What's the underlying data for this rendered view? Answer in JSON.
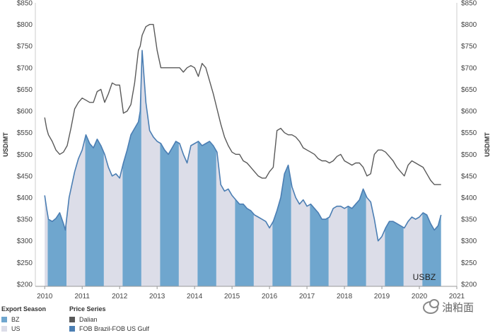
{
  "chart_data": {
    "type": "line",
    "title": "",
    "ylabel_left": "USD/MT",
    "ylabel_right": "USD/MT",
    "ylim": [
      195,
      850
    ],
    "y_ticks": [
      200,
      250,
      300,
      350,
      400,
      450,
      500,
      550,
      600,
      650,
      700,
      750,
      800,
      850
    ],
    "y_tick_labels": [
      "$200",
      "$250",
      "$300",
      "$350",
      "$400",
      "$450",
      "$500",
      "$550",
      "$600",
      "$650",
      "$700",
      "$750",
      "$800",
      "$850"
    ],
    "xlim": [
      2009.75,
      2021.0
    ],
    "x_ticks": [
      2010,
      2011,
      2012,
      2013,
      2014,
      2015,
      2016,
      2017,
      2018,
      2019,
      2020,
      2021
    ],
    "x_tick_labels": [
      "2010",
      "2011",
      "2012",
      "2013",
      "2014",
      "2015",
      "2016",
      "2017",
      "2018",
      "2019",
      "2020",
      "2021"
    ],
    "export_seasons": [
      {
        "season": "US",
        "start": 2010.0,
        "end": 2010.08
      },
      {
        "season": "BZ",
        "start": 2010.08,
        "end": 2010.58
      },
      {
        "season": "US",
        "start": 2010.58,
        "end": 2011.08
      },
      {
        "season": "BZ",
        "start": 2011.08,
        "end": 2011.58
      },
      {
        "season": "US",
        "start": 2011.58,
        "end": 2012.08
      },
      {
        "season": "BZ",
        "start": 2012.08,
        "end": 2012.58
      },
      {
        "season": "US",
        "start": 2012.58,
        "end": 2013.08
      },
      {
        "season": "BZ",
        "start": 2013.08,
        "end": 2013.58
      },
      {
        "season": "US",
        "start": 2013.58,
        "end": 2014.08
      },
      {
        "season": "BZ",
        "start": 2014.08,
        "end": 2014.58
      },
      {
        "season": "US",
        "start": 2014.58,
        "end": 2015.08
      },
      {
        "season": "BZ",
        "start": 2015.08,
        "end": 2015.58
      },
      {
        "season": "US",
        "start": 2015.58,
        "end": 2016.08
      },
      {
        "season": "BZ",
        "start": 2016.08,
        "end": 2016.58
      },
      {
        "season": "US",
        "start": 2016.58,
        "end": 2017.08
      },
      {
        "season": "BZ",
        "start": 2017.08,
        "end": 2017.58
      },
      {
        "season": "US",
        "start": 2017.58,
        "end": 2018.08
      },
      {
        "season": "BZ",
        "start": 2018.08,
        "end": 2018.58
      },
      {
        "season": "US",
        "start": 2018.58,
        "end": 2019.08
      },
      {
        "season": "BZ",
        "start": 2019.08,
        "end": 2019.58
      },
      {
        "season": "US",
        "start": 2019.58,
        "end": 2020.08
      },
      {
        "season": "BZ",
        "start": 2020.08,
        "end": 2020.58
      }
    ],
    "series": [
      {
        "name": "FOB Brazil-FOB US Gulf",
        "color": "#4b7eb3",
        "fill_color": "#6fa6ce",
        "x": [
          2010.0,
          2010.05,
          2010.1,
          2010.2,
          2010.3,
          2010.4,
          2010.5,
          2010.55,
          2010.65,
          2010.8,
          2010.9,
          2011.0,
          2011.1,
          2011.2,
          2011.3,
          2011.4,
          2011.5,
          2011.6,
          2011.7,
          2011.8,
          2011.9,
          2012.0,
          2012.1,
          2012.2,
          2012.3,
          2012.4,
          2012.5,
          2012.55,
          2012.6,
          2012.7,
          2012.8,
          2012.9,
          2013.0,
          2013.1,
          2013.2,
          2013.3,
          2013.4,
          2013.5,
          2013.6,
          2013.7,
          2013.8,
          2013.9,
          2014.0,
          2014.1,
          2014.2,
          2014.3,
          2014.4,
          2014.5,
          2014.6,
          2014.7,
          2014.8,
          2014.9,
          2015.0,
          2015.1,
          2015.2,
          2015.3,
          2015.4,
          2015.5,
          2015.6,
          2015.7,
          2015.8,
          2015.9,
          2016.0,
          2016.1,
          2016.2,
          2016.3,
          2016.4,
          2016.5,
          2016.6,
          2016.7,
          2016.8,
          2016.9,
          2017.0,
          2017.1,
          2017.2,
          2017.3,
          2017.4,
          2017.5,
          2017.6,
          2017.7,
          2017.8,
          2017.9,
          2018.0,
          2018.1,
          2018.2,
          2018.3,
          2018.4,
          2018.5,
          2018.6,
          2018.7,
          2018.8,
          2018.9,
          2019.0,
          2019.1,
          2019.2,
          2019.3,
          2019.4,
          2019.5,
          2019.6,
          2019.7,
          2019.8,
          2019.9,
          2020.0,
          2020.1,
          2020.2,
          2020.3,
          2020.4,
          2020.5,
          2020.58
        ],
        "y": [
          405,
          375,
          350,
          345,
          352,
          365,
          340,
          325,
          400,
          460,
          490,
          510,
          545,
          525,
          515,
          535,
          520,
          500,
          470,
          450,
          455,
          445,
          480,
          510,
          545,
          560,
          575,
          600,
          740,
          620,
          555,
          540,
          530,
          525,
          510,
          500,
          515,
          530,
          525,
          500,
          480,
          520,
          525,
          530,
          520,
          525,
          530,
          520,
          505,
          430,
          415,
          420,
          405,
          395,
          385,
          385,
          375,
          370,
          360,
          355,
          350,
          345,
          330,
          345,
          370,
          400,
          455,
          475,
          425,
          400,
          385,
          395,
          380,
          385,
          375,
          365,
          350,
          350,
          355,
          375,
          380,
          380,
          375,
          380,
          375,
          385,
          395,
          420,
          400,
          390,
          350,
          300,
          310,
          330,
          345,
          345,
          340,
          335,
          330,
          345,
          355,
          350,
          355,
          365,
          360,
          340,
          325,
          335,
          360
        ]
      },
      {
        "name": "Dalian",
        "color": "#595959",
        "x": [
          2010.0,
          2010.05,
          2010.1,
          2010.2,
          2010.3,
          2010.4,
          2010.5,
          2010.6,
          2010.7,
          2010.8,
          2010.9,
          2011.0,
          2011.1,
          2011.2,
          2011.3,
          2011.4,
          2011.5,
          2011.6,
          2011.7,
          2011.8,
          2011.9,
          2012.0,
          2012.1,
          2012.2,
          2012.3,
          2012.4,
          2012.5,
          2012.55,
          2012.6,
          2012.7,
          2012.8,
          2012.9,
          2013.0,
          2013.1,
          2013.2,
          2013.3,
          2013.4,
          2013.5,
          2013.6,
          2013.7,
          2013.8,
          2013.9,
          2014.0,
          2014.1,
          2014.2,
          2014.3,
          2014.4,
          2014.5,
          2014.6,
          2014.7,
          2014.8,
          2014.9,
          2015.0,
          2015.1,
          2015.2,
          2015.3,
          2015.4,
          2015.5,
          2015.6,
          2015.7,
          2015.8,
          2015.9,
          2016.0,
          2016.1,
          2016.2,
          2016.3,
          2016.4,
          2016.5,
          2016.6,
          2016.7,
          2016.8,
          2016.9,
          2017.0,
          2017.1,
          2017.2,
          2017.3,
          2017.4,
          2017.5,
          2017.6,
          2017.7,
          2017.8,
          2017.9,
          2018.0,
          2018.1,
          2018.2,
          2018.3,
          2018.4,
          2018.5,
          2018.6,
          2018.7,
          2018.8,
          2018.9,
          2019.0,
          2019.1,
          2019.2,
          2019.3,
          2019.4,
          2019.5,
          2019.6,
          2019.7,
          2019.8,
          2019.9,
          2020.0,
          2020.1,
          2020.2,
          2020.3,
          2020.4,
          2020.5,
          2020.58
        ],
        "y": [
          585,
          560,
          545,
          530,
          510,
          500,
          505,
          520,
          560,
          605,
          620,
          630,
          625,
          620,
          620,
          645,
          650,
          620,
          640,
          665,
          660,
          660,
          595,
          600,
          615,
          665,
          740,
          750,
          775,
          795,
          800,
          800,
          740,
          700,
          700,
          700,
          700,
          700,
          700,
          690,
          700,
          705,
          700,
          680,
          710,
          700,
          670,
          640,
          605,
          570,
          540,
          520,
          505,
          500,
          500,
          485,
          480,
          470,
          460,
          450,
          445,
          445,
          460,
          470,
          555,
          560,
          550,
          545,
          545,
          540,
          530,
          515,
          510,
          505,
          500,
          490,
          485,
          485,
          480,
          485,
          495,
          500,
          485,
          480,
          475,
          480,
          480,
          470,
          450,
          455,
          500,
          510,
          510,
          505,
          495,
          485,
          470,
          460,
          450,
          475,
          485,
          480,
          475,
          470,
          455,
          440,
          430,
          430,
          430
        ]
      }
    ],
    "season_labels": [
      "US",
      "BZ"
    ],
    "legend": {
      "export_season_title": "Export Season",
      "export_season_items": [
        {
          "label": "BZ",
          "color": "#6fa6ce"
        },
        {
          "label": "US",
          "color": "#dcdde8"
        }
      ],
      "price_series_title": "Price Series",
      "price_series_items": [
        {
          "label": "Dalian",
          "color": "#595959"
        },
        {
          "label": "FOB Brazil-FOB US Gulf",
          "color": "#4b7eb3"
        }
      ]
    }
  },
  "watermark": {
    "text": "油粕面",
    "icon": "wechat-icon"
  }
}
